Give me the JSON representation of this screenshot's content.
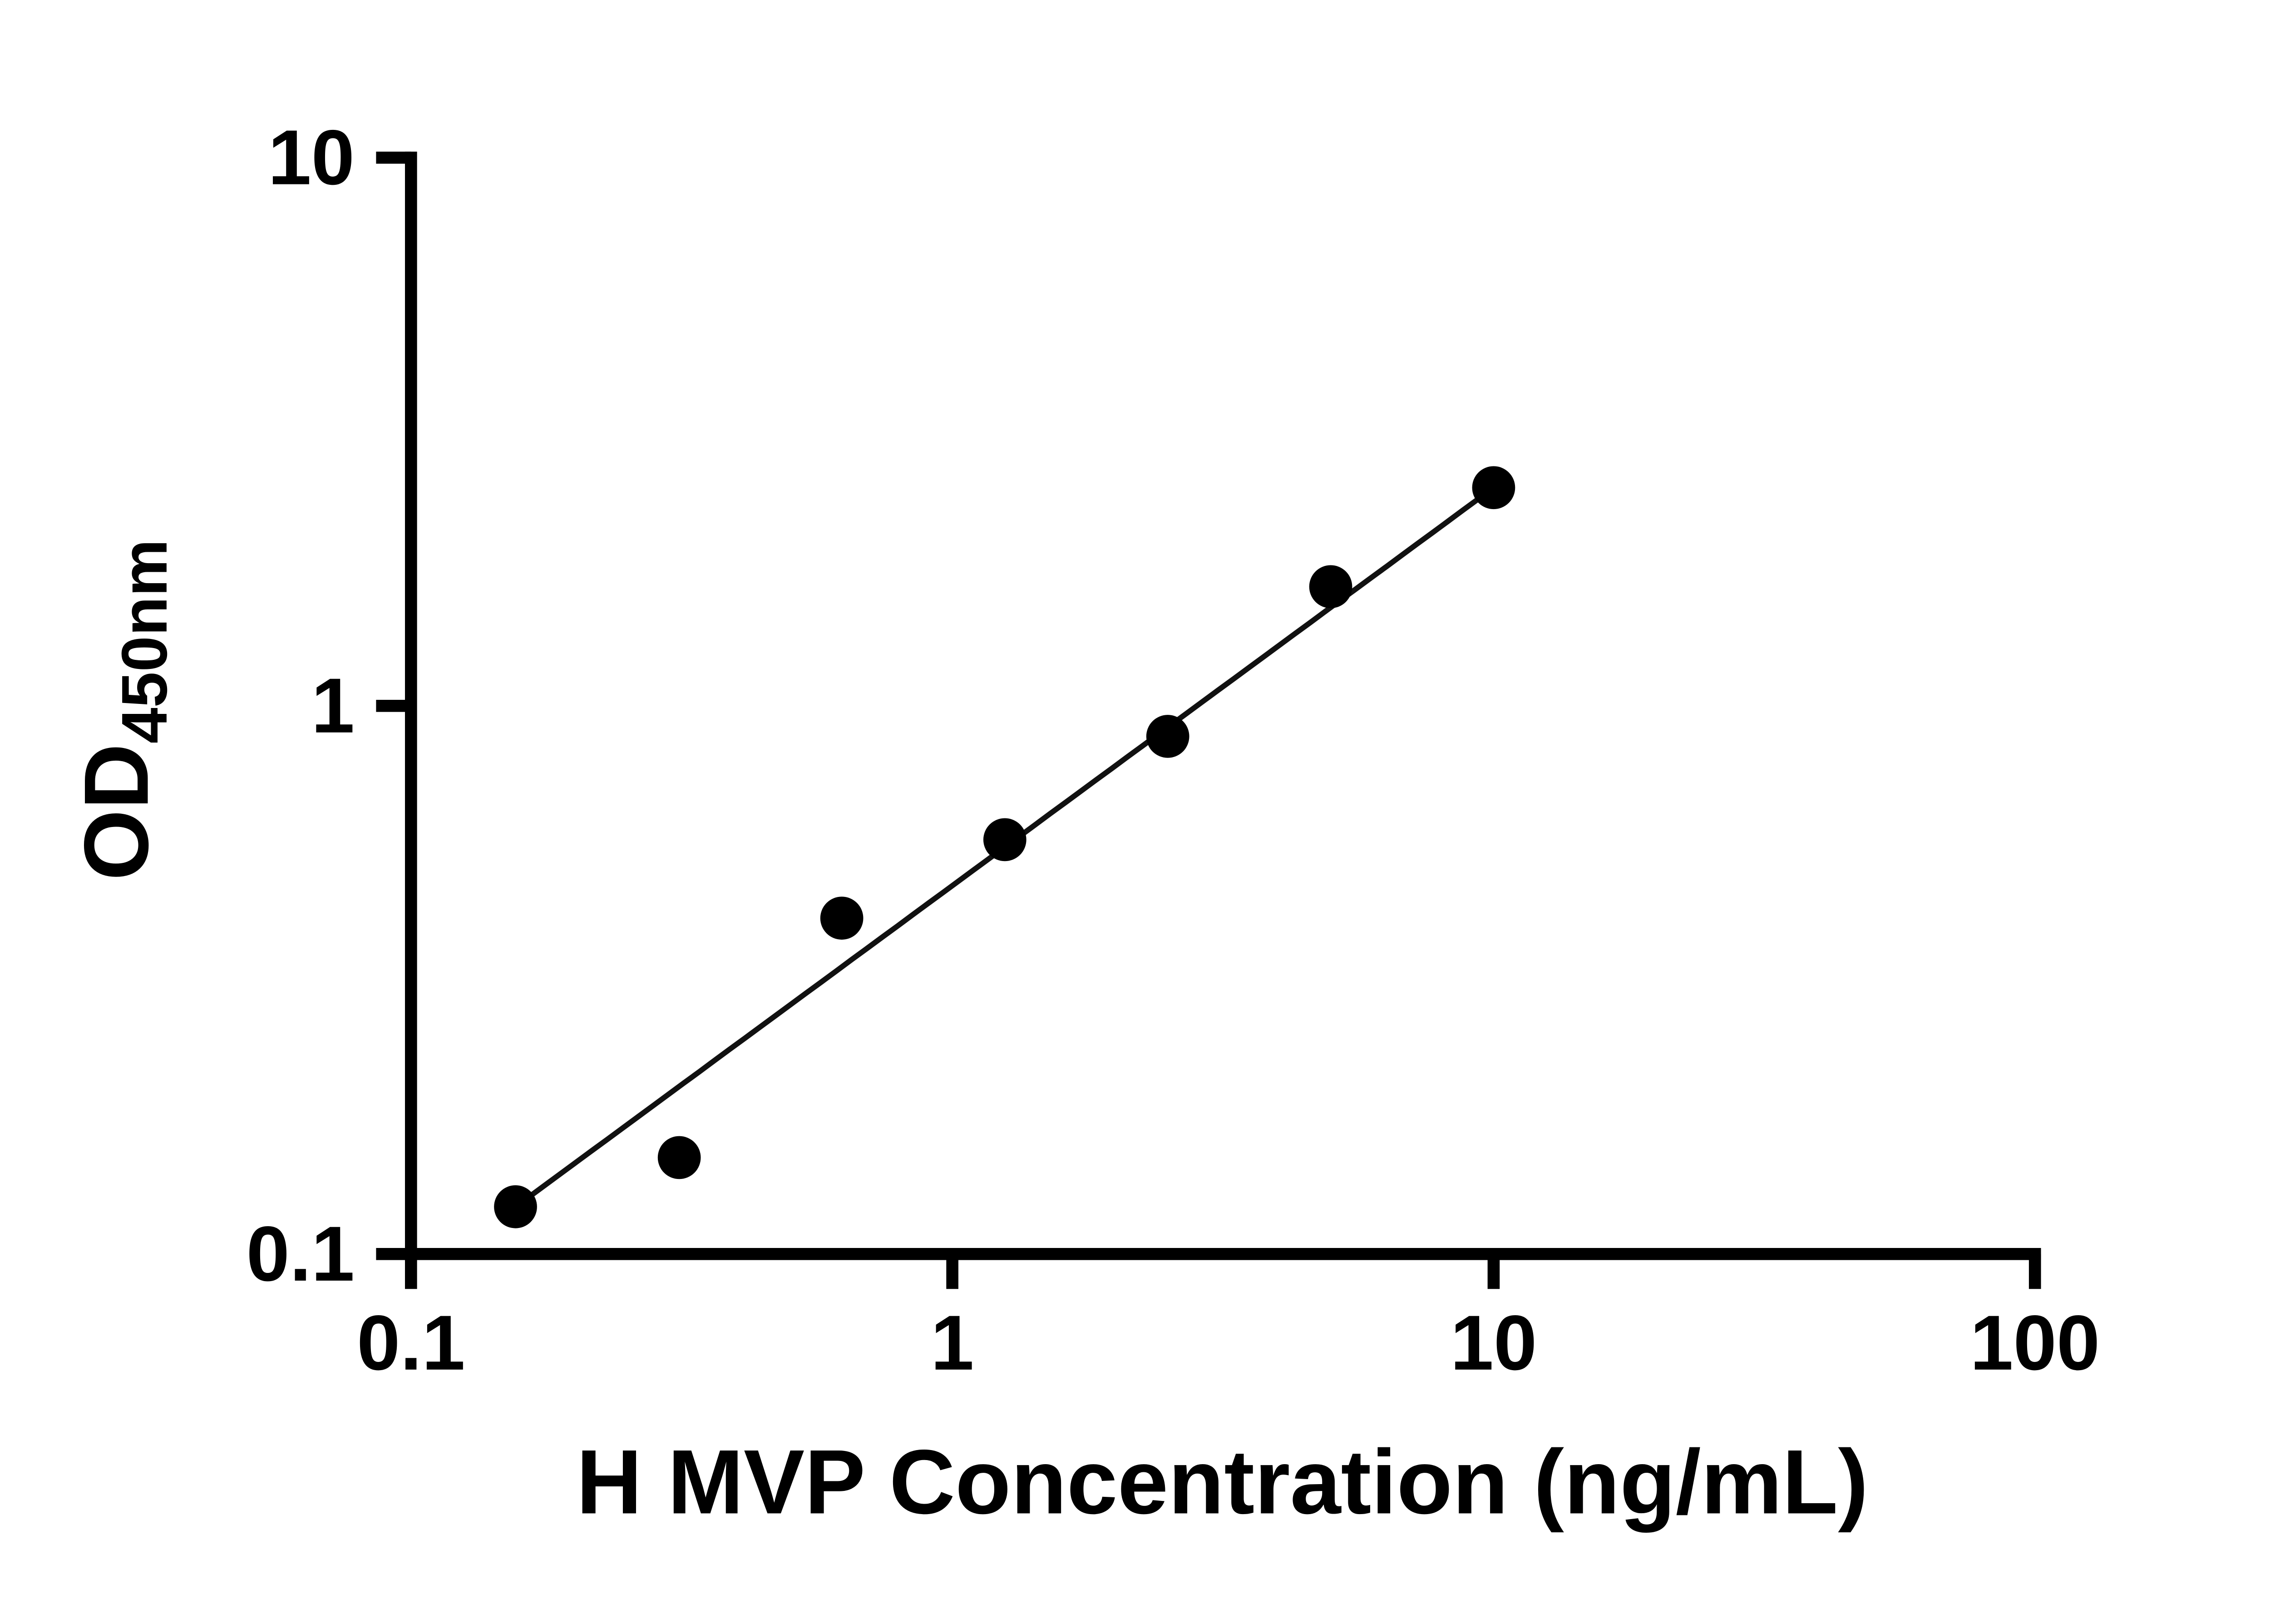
{
  "page": {
    "background_color": "#ffffff",
    "axis_color": "#000000"
  },
  "chart_data": {
    "type": "scatter",
    "title": "",
    "xlabel": "H MVP Concentration (ng/mL)",
    "ylabel": "OD450nm",
    "ylabel_main": "OD",
    "ylabel_sub": "450nm",
    "x_scale": "log",
    "y_scale": "log",
    "xlim": [
      0.1,
      100
    ],
    "ylim": [
      0.1,
      10
    ],
    "x_tick_labels": [
      "0.1",
      "1",
      "10",
      "100"
    ],
    "y_tick_labels": [
      "0.1",
      "1",
      "10"
    ],
    "grid": false,
    "legend": false,
    "marker": {
      "shape": "circle",
      "color": "#000000",
      "radius_px": 16
    },
    "line_color": "#111111",
    "points": [
      {
        "x": 0.156,
        "y": 0.122
      },
      {
        "x": 0.313,
        "y": 0.15
      },
      {
        "x": 0.625,
        "y": 0.41
      },
      {
        "x": 1.25,
        "y": 0.57
      },
      {
        "x": 2.5,
        "y": 0.88
      },
      {
        "x": 5,
        "y": 1.65
      },
      {
        "x": 10,
        "y": 2.5
      }
    ],
    "fit_line": {
      "model": "log10(y) = a + b*log10(x)",
      "a": -0.328,
      "b": 0.726,
      "x_start": 0.156,
      "x_end": 10
    }
  }
}
